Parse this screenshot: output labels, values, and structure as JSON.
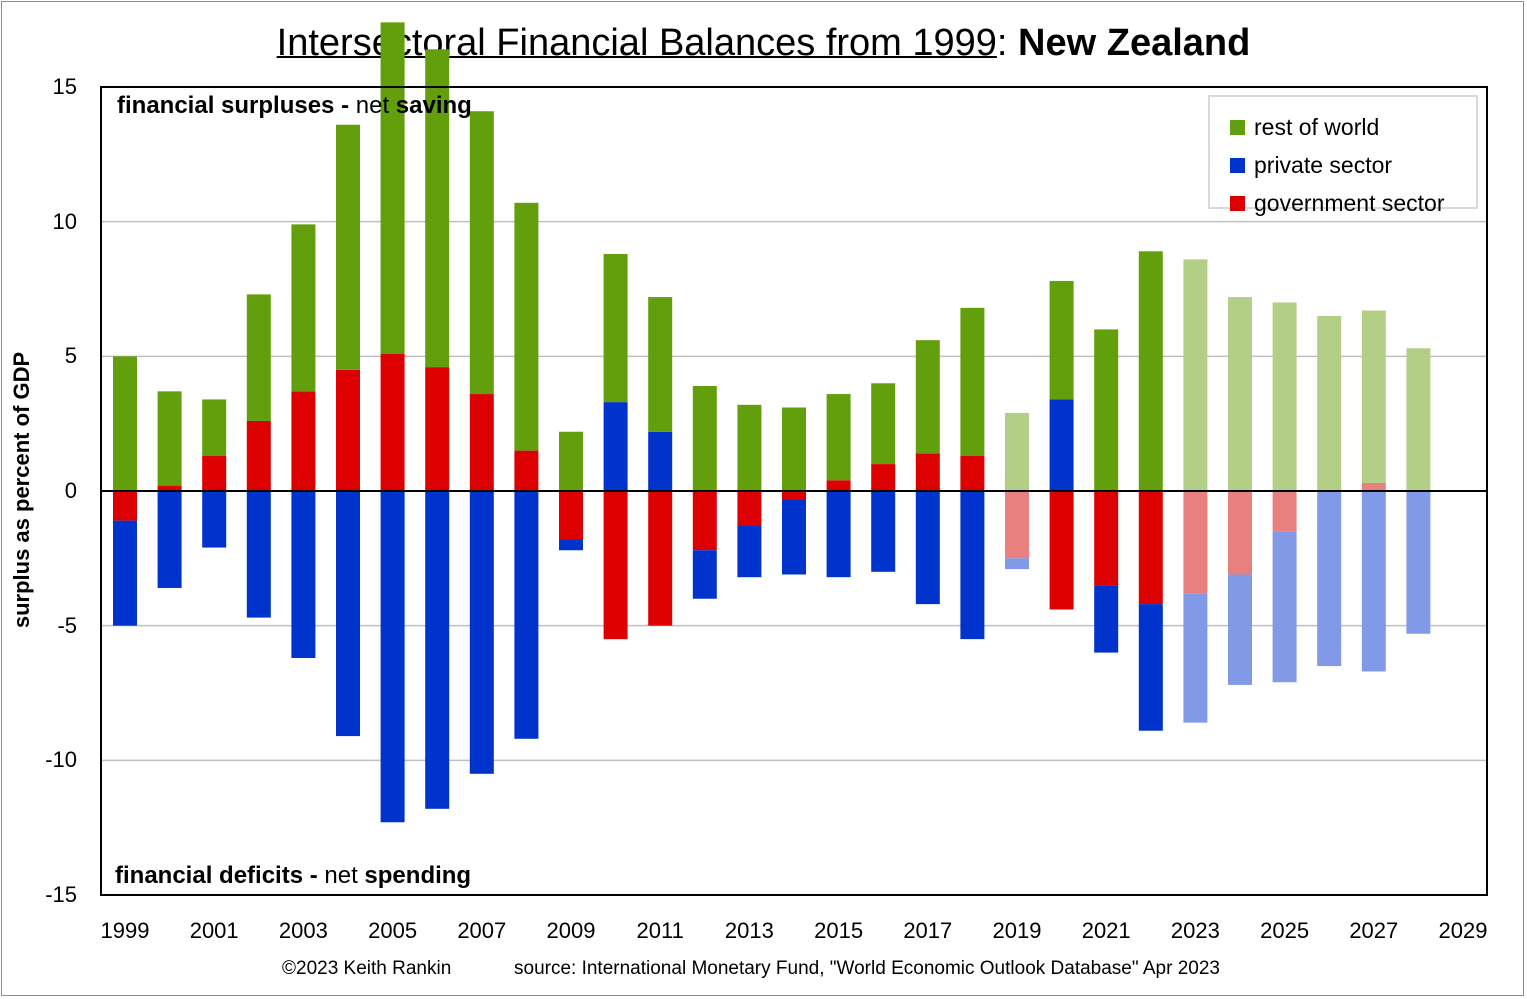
{
  "title": {
    "main": "Intersectoral Financial Balances from 1999",
    "sep": ": ",
    "country": "New Zealand"
  },
  "notes": {
    "top_bold1": "financial surpluses -",
    "top_normal": " net ",
    "top_bold2": "saving",
    "bottom_bold1": "financial deficits -",
    "bottom_normal": " net ",
    "bottom_bold2": "spending"
  },
  "footer": {
    "copyright": "©2023 Keith Rankin",
    "source": "source:  International Monetary Fund, \"World Economic Outlook Database\" Apr 2023"
  },
  "colors": {
    "rest_of_world": "#639E0C",
    "private_sector": "#0033CC",
    "government_sector": "#DD0000",
    "rest_of_world_forecast": "#B3CF85",
    "private_sector_forecast": "#8199E6",
    "government_sector_forecast": "#E88080",
    "zero_line": "#000000",
    "grid": "#BFBFBF"
  },
  "chart_data": {
    "type": "bar",
    "stacked": true,
    "title": "Intersectoral Financial Balances from 1999: New Zealand",
    "ylabel": "surplus as percent of GDP",
    "xlabel": "",
    "ylim": [
      -15,
      15
    ],
    "yticks": [
      15,
      10,
      5,
      0,
      -5,
      -10,
      -15
    ],
    "xtick_labels": [
      "1999",
      "2001",
      "2003",
      "2005",
      "2007",
      "2009",
      "2011",
      "2013",
      "2015",
      "2017",
      "2019",
      "2021",
      "2023",
      "2025",
      "2027",
      "2029"
    ],
    "grid": true,
    "legend_position": "top-right",
    "categories": [
      1999,
      2000,
      2001,
      2002,
      2003,
      2004,
      2005,
      2006,
      2007,
      2008,
      2009,
      2010,
      2011,
      2012,
      2013,
      2014,
      2015,
      2016,
      2017,
      2018,
      2019,
      2020,
      2021,
      2022,
      2023,
      2024,
      2025,
      2026,
      2027,
      2028
    ],
    "faded_categories": [
      2019,
      2023,
      2024,
      2025,
      2026,
      2027,
      2028
    ],
    "series": [
      {
        "name": "rest of world",
        "values": [
          5.0,
          3.5,
          2.1,
          4.7,
          6.2,
          9.1,
          12.3,
          11.8,
          10.5,
          9.2,
          2.2,
          5.5,
          5.0,
          3.9,
          3.2,
          3.1,
          3.2,
          3.0,
          4.2,
          5.5,
          2.9,
          4.4,
          6.0,
          8.9,
          8.6,
          7.2,
          7.0,
          6.5,
          6.4,
          5.3
        ]
      },
      {
        "name": "private sector",
        "values": [
          -3.9,
          -3.6,
          -2.1,
          -4.7,
          -6.2,
          -9.1,
          -12.3,
          -11.8,
          -10.5,
          -9.2,
          -0.4,
          3.3,
          2.2,
          -1.8,
          -1.9,
          -2.8,
          -3.2,
          -3.0,
          -4.2,
          -5.5,
          -0.4,
          3.4,
          -2.5,
          -4.7,
          -4.8,
          -4.1,
          -5.6,
          -6.5,
          -6.7,
          -5.3
        ]
      },
      {
        "name": "government sector",
        "values": [
          -1.1,
          0.2,
          1.3,
          2.6,
          3.7,
          4.5,
          5.1,
          4.6,
          3.6,
          1.5,
          -1.8,
          -5.5,
          -5.0,
          -2.2,
          -1.3,
          -0.3,
          0.4,
          1.0,
          1.4,
          1.3,
          -2.5,
          -4.4,
          -3.5,
          -4.2,
          -3.8,
          -3.1,
          -1.5,
          0.0,
          0.3,
          0.0
        ]
      }
    ]
  }
}
